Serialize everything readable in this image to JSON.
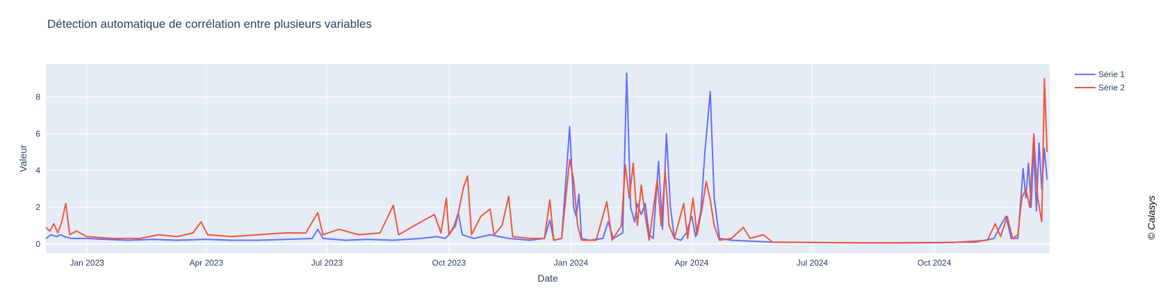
{
  "chart_data": {
    "type": "line",
    "title": "Détection automatique de corrélation entre plusieurs variables",
    "xlabel": "Date",
    "ylabel": "Valeur",
    "xlim": [
      "2022-12-01",
      "2024-12-27"
    ],
    "ylim": [
      -0.5,
      9.8
    ],
    "y_ticks": [
      0,
      2,
      4,
      6,
      8
    ],
    "y_tick_labels": [
      "0",
      "2",
      "4",
      "6",
      "8"
    ],
    "x_ticks": [
      "2023-01-01",
      "2023-04-01",
      "2023-07-01",
      "2023-10-01",
      "2024-01-01",
      "2024-04-01",
      "2024-07-01",
      "2024-10-01"
    ],
    "x_tick_labels": [
      "Jan 2023",
      "Apr 2023",
      "Jul 2023",
      "Oct 2023",
      "Jan 2024",
      "Apr 2024",
      "Jul 2024",
      "Oct 2024"
    ],
    "grid": true,
    "legend_position": "top-right",
    "series": [
      {
        "name": "Série 1",
        "color": "#636efa",
        "points": [
          [
            "2022-12-01",
            0.3
          ],
          [
            "2022-12-05",
            0.5
          ],
          [
            "2022-12-09",
            0.4
          ],
          [
            "2022-12-12",
            0.5
          ],
          [
            "2022-12-15",
            0.4
          ],
          [
            "2022-12-20",
            0.3
          ],
          [
            "2023-01-01",
            0.3
          ],
          [
            "2023-01-15",
            0.25
          ],
          [
            "2023-02-01",
            0.2
          ],
          [
            "2023-02-20",
            0.25
          ],
          [
            "2023-03-10",
            0.2
          ],
          [
            "2023-04-01",
            0.25
          ],
          [
            "2023-04-20",
            0.2
          ],
          [
            "2023-05-10",
            0.2
          ],
          [
            "2023-06-01",
            0.25
          ],
          [
            "2023-06-20",
            0.3
          ],
          [
            "2023-06-24",
            0.8
          ],
          [
            "2023-06-28",
            0.3
          ],
          [
            "2023-07-15",
            0.2
          ],
          [
            "2023-08-01",
            0.25
          ],
          [
            "2023-08-20",
            0.2
          ],
          [
            "2023-09-10",
            0.3
          ],
          [
            "2023-09-22",
            0.4
          ],
          [
            "2023-09-28",
            0.3
          ],
          [
            "2023-10-01",
            0.5
          ],
          [
            "2023-10-05",
            1.0
          ],
          [
            "2023-10-08",
            1.7
          ],
          [
            "2023-10-11",
            0.5
          ],
          [
            "2023-10-20",
            0.3
          ],
          [
            "2023-11-01",
            0.5
          ],
          [
            "2023-11-15",
            0.3
          ],
          [
            "2023-12-01",
            0.2
          ],
          [
            "2023-12-12",
            0.3
          ],
          [
            "2023-12-16",
            1.3
          ],
          [
            "2023-12-19",
            0.2
          ],
          [
            "2023-12-25",
            0.3
          ],
          [
            "2023-12-31",
            6.4
          ],
          [
            "2024-01-03",
            2.0
          ],
          [
            "2024-01-05",
            1.5
          ],
          [
            "2024-01-07",
            2.7
          ],
          [
            "2024-01-09",
            0.3
          ],
          [
            "2024-01-15",
            0.2
          ],
          [
            "2024-01-25",
            0.3
          ],
          [
            "2024-01-29",
            1.2
          ],
          [
            "2024-02-02",
            0.3
          ],
          [
            "2024-02-09",
            0.6
          ],
          [
            "2024-02-12",
            9.3
          ],
          [
            "2024-02-15",
            2.0
          ],
          [
            "2024-02-18",
            1.2
          ],
          [
            "2024-02-20",
            2.2
          ],
          [
            "2024-02-23",
            1.6
          ],
          [
            "2024-02-26",
            2.2
          ],
          [
            "2024-02-29",
            0.5
          ],
          [
            "2024-03-03",
            0.3
          ],
          [
            "2024-03-07",
            4.5
          ],
          [
            "2024-03-10",
            0.8
          ],
          [
            "2024-03-13",
            6.0
          ],
          [
            "2024-03-16",
            2.0
          ],
          [
            "2024-03-19",
            0.3
          ],
          [
            "2024-03-24",
            0.2
          ],
          [
            "2024-03-28",
            0.6
          ],
          [
            "2024-04-01",
            1.5
          ],
          [
            "2024-04-04",
            0.4
          ],
          [
            "2024-04-08",
            1.8
          ],
          [
            "2024-04-11",
            5.0
          ],
          [
            "2024-04-15",
            8.3
          ],
          [
            "2024-04-18",
            2.5
          ],
          [
            "2024-04-22",
            0.3
          ],
          [
            "2024-05-01",
            0.2
          ],
          [
            "2024-05-15",
            0.15
          ],
          [
            "2024-06-01",
            0.1
          ],
          [
            "2024-07-01",
            0.08
          ],
          [
            "2024-08-01",
            0.06
          ],
          [
            "2024-09-01",
            0.06
          ],
          [
            "2024-10-01",
            0.08
          ],
          [
            "2024-11-01",
            0.1
          ],
          [
            "2024-11-15",
            0.3
          ],
          [
            "2024-11-20",
            1.0
          ],
          [
            "2024-11-24",
            1.5
          ],
          [
            "2024-11-28",
            0.3
          ],
          [
            "2024-12-03",
            0.3
          ],
          [
            "2024-12-07",
            4.1
          ],
          [
            "2024-12-09",
            2.5
          ],
          [
            "2024-12-11",
            4.4
          ],
          [
            "2024-12-13",
            2.0
          ],
          [
            "2024-12-15",
            5.3
          ],
          [
            "2024-12-17",
            1.8
          ],
          [
            "2024-12-19",
            5.5
          ],
          [
            "2024-12-21",
            3.0
          ],
          [
            "2024-12-23",
            5.2
          ],
          [
            "2024-12-25",
            3.5
          ]
        ]
      },
      {
        "name": "Série 2",
        "color": "#ef553b",
        "points": [
          [
            "2022-12-01",
            0.9
          ],
          [
            "2022-12-04",
            0.7
          ],
          [
            "2022-12-07",
            1.1
          ],
          [
            "2022-12-10",
            0.6
          ],
          [
            "2022-12-13",
            1.2
          ],
          [
            "2022-12-16",
            2.2
          ],
          [
            "2022-12-19",
            0.5
          ],
          [
            "2022-12-24",
            0.7
          ],
          [
            "2023-01-01",
            0.4
          ],
          [
            "2023-01-20",
            0.3
          ],
          [
            "2023-02-10",
            0.3
          ],
          [
            "2023-02-24",
            0.5
          ],
          [
            "2023-03-10",
            0.4
          ],
          [
            "2023-03-22",
            0.6
          ],
          [
            "2023-03-28",
            1.2
          ],
          [
            "2023-04-02",
            0.5
          ],
          [
            "2023-04-20",
            0.4
          ],
          [
            "2023-05-10",
            0.5
          ],
          [
            "2023-05-30",
            0.6
          ],
          [
            "2023-06-15",
            0.6
          ],
          [
            "2023-06-24",
            1.7
          ],
          [
            "2023-06-28",
            0.5
          ],
          [
            "2023-07-10",
            0.8
          ],
          [
            "2023-07-25",
            0.5
          ],
          [
            "2023-08-10",
            0.6
          ],
          [
            "2023-08-20",
            2.1
          ],
          [
            "2023-08-24",
            0.5
          ],
          [
            "2023-09-05",
            1.0
          ],
          [
            "2023-09-20",
            1.6
          ],
          [
            "2023-09-25",
            0.6
          ],
          [
            "2023-09-29",
            2.5
          ],
          [
            "2023-10-01",
            0.5
          ],
          [
            "2023-10-06",
            1.0
          ],
          [
            "2023-10-12",
            3.1
          ],
          [
            "2023-10-15",
            3.7
          ],
          [
            "2023-10-18",
            0.5
          ],
          [
            "2023-10-25",
            1.5
          ],
          [
            "2023-11-01",
            1.9
          ],
          [
            "2023-11-04",
            0.5
          ],
          [
            "2023-11-10",
            1.0
          ],
          [
            "2023-11-15",
            2.6
          ],
          [
            "2023-11-18",
            0.4
          ],
          [
            "2023-12-01",
            0.3
          ],
          [
            "2023-12-12",
            0.3
          ],
          [
            "2023-12-16",
            2.4
          ],
          [
            "2023-12-19",
            0.2
          ],
          [
            "2023-12-25",
            0.3
          ],
          [
            "2023-12-31",
            4.6
          ],
          [
            "2024-01-03",
            3.5
          ],
          [
            "2024-01-06",
            1.0
          ],
          [
            "2024-01-09",
            0.2
          ],
          [
            "2024-01-20",
            0.2
          ],
          [
            "2024-01-28",
            2.3
          ],
          [
            "2024-02-01",
            0.2
          ],
          [
            "2024-02-08",
            1.0
          ],
          [
            "2024-02-11",
            4.3
          ],
          [
            "2024-02-14",
            2.5
          ],
          [
            "2024-02-17",
            4.4
          ],
          [
            "2024-02-20",
            1.0
          ],
          [
            "2024-02-23",
            3.2
          ],
          [
            "2024-02-26",
            1.5
          ],
          [
            "2024-02-29",
            0.2
          ],
          [
            "2024-03-06",
            3.5
          ],
          [
            "2024-03-09",
            1.0
          ],
          [
            "2024-03-12",
            4.0
          ],
          [
            "2024-03-15",
            1.0
          ],
          [
            "2024-03-19",
            0.3
          ],
          [
            "2024-03-26",
            2.2
          ],
          [
            "2024-03-29",
            0.3
          ],
          [
            "2024-04-02",
            2.5
          ],
          [
            "2024-04-05",
            0.5
          ],
          [
            "2024-04-09",
            2.0
          ],
          [
            "2024-04-12",
            3.4
          ],
          [
            "2024-04-15",
            2.4
          ],
          [
            "2024-04-18",
            1.0
          ],
          [
            "2024-04-22",
            0.2
          ],
          [
            "2024-05-01",
            0.3
          ],
          [
            "2024-05-10",
            0.9
          ],
          [
            "2024-05-15",
            0.3
          ],
          [
            "2024-05-25",
            0.5
          ],
          [
            "2024-06-01",
            0.1
          ],
          [
            "2024-07-01",
            0.08
          ],
          [
            "2024-08-15",
            0.06
          ],
          [
            "2024-09-15",
            0.06
          ],
          [
            "2024-10-15",
            0.07
          ],
          [
            "2024-11-10",
            0.2
          ],
          [
            "2024-11-16",
            1.1
          ],
          [
            "2024-11-20",
            0.4
          ],
          [
            "2024-11-25",
            1.5
          ],
          [
            "2024-11-29",
            0.3
          ],
          [
            "2024-12-03",
            0.5
          ],
          [
            "2024-12-06",
            2.5
          ],
          [
            "2024-12-09",
            3.0
          ],
          [
            "2024-12-12",
            2.0
          ],
          [
            "2024-12-15",
            6.0
          ],
          [
            "2024-12-18",
            2.5
          ],
          [
            "2024-12-21",
            1.2
          ],
          [
            "2024-12-23",
            9.0
          ],
          [
            "2024-12-25",
            5.0
          ]
        ]
      }
    ]
  },
  "watermark": "© Calasys"
}
